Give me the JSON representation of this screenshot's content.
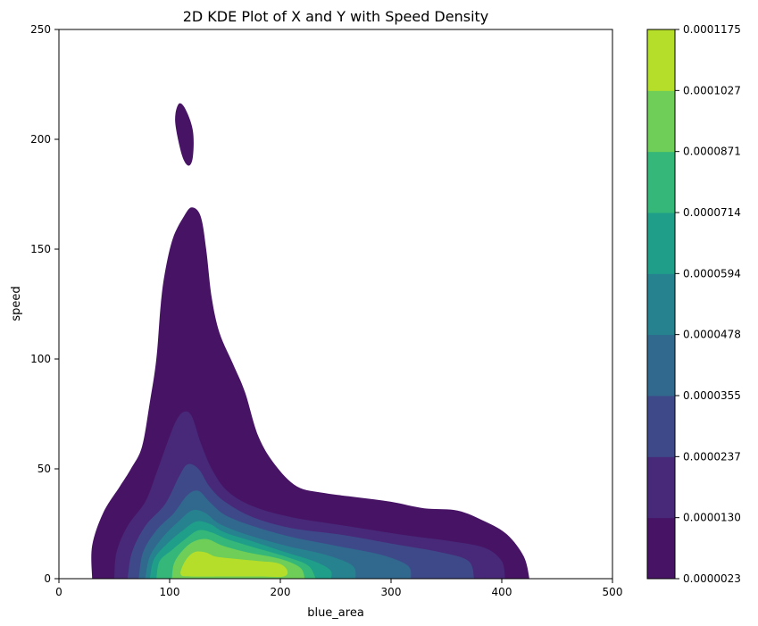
{
  "chart_data": {
    "type": "kde_contour",
    "title": "2D KDE Plot of X and Y with Speed Density",
    "xlabel": "blue_area",
    "ylabel": "speed",
    "xlim": [
      0,
      500
    ],
    "ylim": [
      0,
      250
    ],
    "xticks": [
      0,
      100,
      200,
      300,
      400,
      500
    ],
    "yticks": [
      0,
      50,
      100,
      150,
      200,
      250
    ],
    "colorbar": {
      "levels": [
        "0.0000023",
        "0.0000130",
        "0.0000237",
        "0.0000355",
        "0.0000478",
        "0.0000594",
        "0.0000714",
        "0.0000871",
        "0.0001027",
        "0.0001175"
      ],
      "colors": [
        "#471365",
        "#482878",
        "#3e4989",
        "#31688e",
        "#26828e",
        "#1f9e89",
        "#35b779",
        "#6ece58",
        "#b5de2b",
        "#d8e219"
      ]
    },
    "contours": [
      {
        "level": 0,
        "polygons": [
          [
            [
              30,
              0
            ],
            [
              30,
              15
            ],
            [
              40,
              30
            ],
            [
              55,
              42
            ],
            [
              65,
              50
            ],
            [
              75,
              60
            ],
            [
              82,
              80
            ],
            [
              88,
              100
            ],
            [
              92,
              125
            ],
            [
              96,
              140
            ],
            [
              103,
              155
            ],
            [
              113,
              165
            ],
            [
              120,
              169
            ],
            [
              128,
              165
            ],
            [
              133,
              150
            ],
            [
              138,
              128
            ],
            [
              145,
              112
            ],
            [
              157,
              98
            ],
            [
              168,
              85
            ],
            [
              180,
              65
            ],
            [
              195,
              52
            ],
            [
              215,
              42
            ],
            [
              240,
              39
            ],
            [
              270,
              37
            ],
            [
              300,
              35
            ],
            [
              330,
              32
            ],
            [
              360,
              31
            ],
            [
              385,
              26
            ],
            [
              405,
              20
            ],
            [
              420,
              10
            ],
            [
              425,
              0
            ]
          ],
          [
            [
              108,
              216
            ],
            [
              114,
              214
            ],
            [
              121,
              204
            ],
            [
              121,
              192
            ],
            [
              117,
              188
            ],
            [
              111,
              193
            ],
            [
              105,
              208
            ]
          ]
        ]
      },
      {
        "level": 1,
        "polygons": [
          [
            [
              50,
              0
            ],
            [
              52,
              12
            ],
            [
              62,
              24
            ],
            [
              78,
              35
            ],
            [
              88,
              48
            ],
            [
              98,
              62
            ],
            [
              106,
              72
            ],
            [
              113,
              76
            ],
            [
              120,
              74
            ],
            [
              128,
              62
            ],
            [
              138,
              50
            ],
            [
              152,
              40
            ],
            [
              175,
              33
            ],
            [
              210,
              28
            ],
            [
              260,
              24
            ],
            [
              310,
              20
            ],
            [
              355,
              17
            ],
            [
              385,
              14
            ],
            [
              400,
              8
            ],
            [
              403,
              0
            ]
          ]
        ]
      },
      {
        "level": 2,
        "polygons": [
          [
            [
              62,
              0
            ],
            [
              66,
              12
            ],
            [
              78,
              24
            ],
            [
              96,
              34
            ],
            [
              108,
              46
            ],
            [
              116,
              52
            ],
            [
              126,
              50
            ],
            [
              136,
              42
            ],
            [
              150,
              35
            ],
            [
              175,
              28
            ],
            [
              210,
              23
            ],
            [
              255,
              20
            ],
            [
              300,
              16
            ],
            [
              345,
              12
            ],
            [
              370,
              8
            ],
            [
              375,
              0
            ]
          ]
        ]
      },
      {
        "level": 3,
        "polygons": [
          [
            [
              72,
              0
            ],
            [
              76,
              12
            ],
            [
              88,
              22
            ],
            [
              104,
              30
            ],
            [
              116,
              38
            ],
            [
              126,
              40
            ],
            [
              136,
              35
            ],
            [
              150,
              29
            ],
            [
              175,
              24
            ],
            [
              210,
              19
            ],
            [
              250,
              15
            ],
            [
              290,
              11
            ],
            [
              315,
              6
            ],
            [
              318,
              0
            ]
          ]
        ]
      },
      {
        "level": 4,
        "polygons": [
          [
            [
              78,
              0
            ],
            [
              82,
              10
            ],
            [
              94,
              19
            ],
            [
              108,
              26
            ],
            [
              120,
              31
            ],
            [
              132,
              30
            ],
            [
              145,
              25
            ],
            [
              170,
              20
            ],
            [
              205,
              15
            ],
            [
              240,
              11
            ],
            [
              265,
              6
            ],
            [
              268,
              0
            ]
          ]
        ]
      },
      {
        "level": 5,
        "polygons": [
          [
            [
              82,
              0
            ],
            [
              86,
              9
            ],
            [
              98,
              16
            ],
            [
              112,
              22
            ],
            [
              124,
              26
            ],
            [
              136,
              25
            ],
            [
              150,
              21
            ],
            [
              175,
              17
            ],
            [
              205,
              12
            ],
            [
              230,
              8
            ],
            [
              245,
              4
            ],
            [
              246,
              0
            ]
          ]
        ]
      },
      {
        "level": 6,
        "polygons": [
          [
            [
              88,
              0
            ],
            [
              91,
              8
            ],
            [
              102,
              13
            ],
            [
              114,
              18
            ],
            [
              126,
              22
            ],
            [
              138,
              21
            ],
            [
              152,
              18
            ],
            [
              178,
              14
            ],
            [
              205,
              10
            ],
            [
              225,
              6
            ],
            [
              232,
              0
            ]
          ]
        ]
      },
      {
        "level": 7,
        "polygons": [
          [
            [
              102,
              0
            ],
            [
              104,
              7
            ],
            [
              112,
              13
            ],
            [
              122,
              17
            ],
            [
              134,
              18
            ],
            [
              148,
              15
            ],
            [
              170,
              12
            ],
            [
              200,
              9
            ],
            [
              218,
              5
            ],
            [
              222,
              0
            ]
          ]
        ]
      },
      {
        "level": 8,
        "polygons": [
          [
            [
              110,
              2
            ],
            [
              114,
              8
            ],
            [
              122,
              12
            ],
            [
              132,
              12
            ],
            [
              142,
              10
            ],
            [
              160,
              9
            ],
            [
              180,
              8
            ],
            [
              198,
              7
            ],
            [
              206,
              4
            ],
            [
              203,
              1
            ],
            [
              180,
              1
            ],
            [
              150,
              1
            ],
            [
              120,
              1
            ]
          ]
        ]
      }
    ]
  }
}
